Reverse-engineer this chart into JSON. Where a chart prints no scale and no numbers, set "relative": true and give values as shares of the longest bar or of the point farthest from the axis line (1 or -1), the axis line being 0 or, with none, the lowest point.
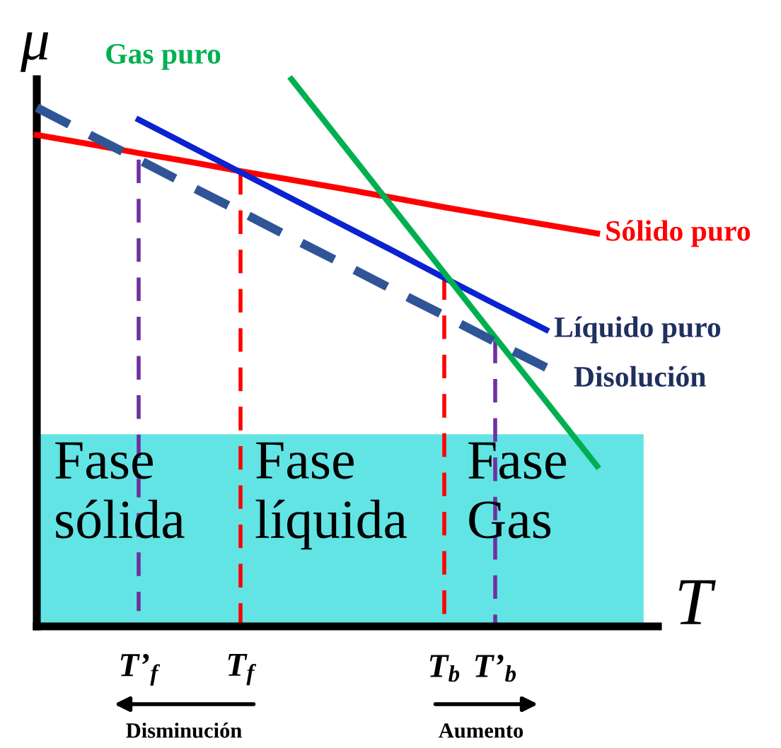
{
  "chart_data": {
    "type": "line",
    "relative": true,
    "xlabel": "T",
    "ylabel": "μ",
    "categories": [
      null,
      null,
      "T’$_{f}$",
      null,
      "T$_{f}$",
      null,
      null,
      null,
      "T$_{b}$",
      "T’$_{b}$",
      null,
      null,
      null
    ],
    "series": [
      {
        "name": "Sólido puro",
        "color": "#ff0000",
        "line_style": "solid",
        "values": [
          0.898,
          0.882,
          0.865,
          0.849,
          0.832,
          0.816,
          0.8,
          0.783,
          0.766,
          0.75,
          0.734,
          0.718,
          null
        ]
      },
      {
        "name": "Líquido puro",
        "color": "#0a22d0",
        "line_style": "solid",
        "values": [
          null,
          null,
          0.926,
          0.878,
          0.83,
          0.782,
          0.734,
          0.686,
          0.637,
          0.589,
          0.542,
          null,
          null
        ]
      },
      {
        "name": "Gas puro",
        "color": "#00b050",
        "line_style": "solid",
        "values": [
          null,
          null,
          null,
          null,
          null,
          1,
          0.882,
          0.764,
          0.646,
          0.528,
          0.411,
          0.293,
          null
        ]
      },
      {
        "name": "Disolución",
        "color": "#2f5597",
        "line_style": "dashed",
        "values": [
          0.948,
          0.9,
          0.853,
          0.805,
          0.758,
          0.71,
          0.663,
          0.615,
          0.568,
          0.52,
          0.473,
          null,
          null
        ]
      },
      {
        "color": "#7030a0",
        "line_style": "dashed",
        "x": [
          "T’$_{f}$",
          "T’$_{f}$"
        ],
        "values": [
          0.853,
          0.028
        ]
      },
      {
        "color": "#ff0000",
        "line_style": "dashed",
        "x": [
          "T$_{f}$",
          "T$_{f}$"
        ],
        "values": [
          0.832,
          0
        ]
      },
      {
        "color": "#ff0000",
        "line_style": "dashed",
        "x": [
          "T$_{b}$",
          "T$_{b}$"
        ],
        "values": [
          0.64,
          0
        ]
      },
      {
        "color": "#7030a0",
        "line_style": "dashed",
        "x": [
          "T’$_{b}$",
          "T’$_{b}$"
        ],
        "values": [
          0.524,
          0
        ]
      }
    ],
    "bands": [
      {
        "axis": "y",
        "from": 0,
        "to": 0.351,
        "color": "#62e4e4"
      }
    ],
    "annotations": [
      "Fase\nsólida",
      "Fase\nlíquida",
      "Fase\nGas",
      "Disminución",
      "Aumento"
    ],
    "grid": false,
    "legend": false,
    "marker": "none"
  }
}
